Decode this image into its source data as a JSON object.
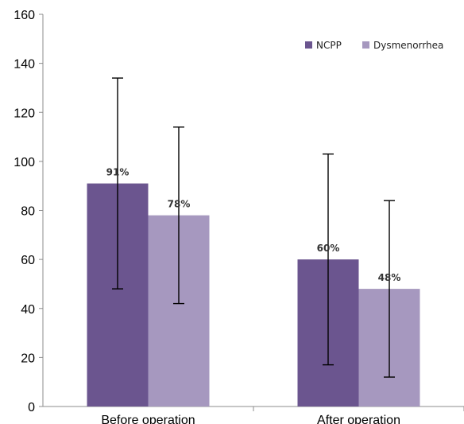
{
  "chart_data": {
    "type": "bar",
    "categories": [
      "Before operation",
      "After operation"
    ],
    "series": [
      {
        "name": "NCPP",
        "values": [
          91,
          60
        ],
        "error_low": [
          48,
          17
        ],
        "error_high": [
          134,
          103
        ],
        "labels": [
          "91%",
          "60%"
        ]
      },
      {
        "name": "Dysmenorrhea",
        "values": [
          78,
          48
        ],
        "error_low": [
          42,
          12
        ],
        "error_high": [
          114,
          84
        ],
        "labels": [
          "78%",
          "48%"
        ]
      }
    ],
    "ylim": [
      0,
      160
    ],
    "yticks": [
      0,
      20,
      40,
      60,
      80,
      100,
      120,
      140,
      160
    ],
    "title": "",
    "xlabel": "",
    "ylabel": "",
    "grid": false,
    "legend_position": "top-right",
    "colors": {
      "NCPP": "#6b558f",
      "Dysmenorrhea": "#a698bf",
      "axis": "#8c8c8c",
      "error_bar": "#000000"
    }
  }
}
